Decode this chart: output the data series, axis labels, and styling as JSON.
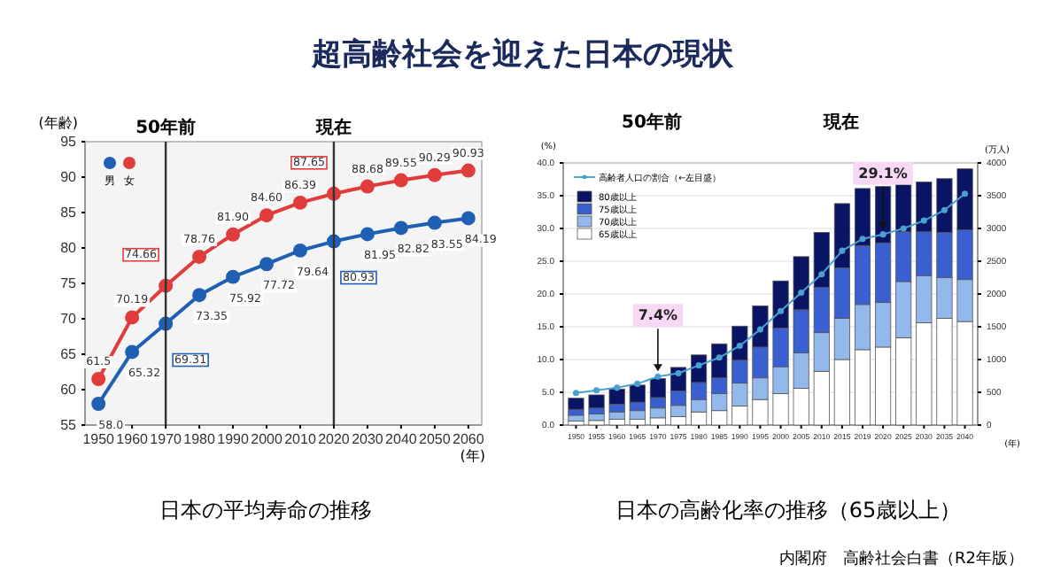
{
  "chart_data": [
    {
      "type": "line",
      "title": "超高齢社会を迎えた日本の現状",
      "subtitle": "日本の平均寿命の推移",
      "xlabel": "(年)",
      "ylabel": "(年齢)",
      "categories": [
        "1950",
        "1960",
        "1970",
        "1980",
        "1990",
        "2000",
        "2010",
        "2020",
        "2030",
        "2040",
        "2050",
        "2060"
      ],
      "series": [
        {
          "name": "男",
          "color": "#1f5fb4",
          "values": [
            58.0,
            65.32,
            69.31,
            73.35,
            75.92,
            77.72,
            79.64,
            80.93,
            81.95,
            82.82,
            83.55,
            84.19
          ],
          "value_labels": [
            "58.0",
            "65.32",
            "69.31",
            "73.35",
            "75.92",
            "77.72",
            "79.64",
            "80.93",
            "81.95",
            "82.82",
            "83.55",
            "84.19"
          ]
        },
        {
          "name": "女",
          "color": "#e03c3c",
          "values": [
            61.5,
            70.19,
            74.66,
            78.76,
            81.9,
            84.6,
            86.39,
            87.65,
            88.68,
            89.55,
            90.29,
            90.93
          ],
          "value_labels": [
            "61.5",
            "70.19",
            "74.66",
            "78.76",
            "81.90",
            "84.60",
            "86.39",
            "87.65",
            "88.68",
            "89.55",
            "90.29",
            "90.93"
          ]
        }
      ],
      "ylim": [
        55,
        95
      ],
      "yticks": [
        55,
        60,
        65,
        70,
        75,
        80,
        85,
        90,
        95
      ],
      "legend": "top left",
      "marker": "circle",
      "data_labels": true,
      "ref_lines": [
        {
          "axis": "x",
          "value": "1970",
          "label": "50年前",
          "color": "#333333"
        },
        {
          "axis": "x",
          "value": "2020",
          "label": "現在",
          "color": "#333333"
        }
      ]
    },
    {
      "type": "bar",
      "subtitle": "日本の高齢化率の推移（65歳以上）",
      "xlabel": "(年)",
      "ylabel": "(%)",
      "y2label": "(万人)",
      "stacked": true,
      "categories": [
        "1950",
        "1955",
        "1960",
        "1965",
        "1970",
        "1975",
        "1980",
        "1985",
        "1990",
        "1995",
        "2000",
        "2005",
        "2010",
        "2015",
        "2019",
        "2020",
        "2025",
        "2030",
        "2035",
        "2040"
      ],
      "series": [
        {
          "name": "65歳以上",
          "color": "#ffffff",
          "axis": "y2",
          "values": [
            60,
            70,
            90,
            90,
            110,
            130,
            200,
            220,
            290,
            390,
            480,
            560,
            820,
            1000,
            1150,
            1190,
            1330,
            1560,
            1630,
            1580
          ]
        },
        {
          "name": "70歳以上",
          "color": "#93b8ec",
          "axis": "y2",
          "values": [
            90,
            100,
            110,
            130,
            150,
            170,
            190,
            260,
            350,
            330,
            410,
            540,
            590,
            630,
            690,
            680,
            860,
            720,
            620,
            640
          ]
        },
        {
          "name": "75歳以上",
          "color": "#3a5fd0",
          "axis": "y2",
          "values": [
            90,
            90,
            120,
            130,
            160,
            220,
            260,
            240,
            350,
            470,
            590,
            660,
            690,
            770,
            900,
            910,
            760,
            670,
            690,
            760
          ]
        },
        {
          "name": "80歳以上",
          "color": "#0a1464",
          "axis": "y2",
          "values": [
            170,
            200,
            230,
            260,
            290,
            360,
            420,
            520,
            520,
            630,
            720,
            810,
            840,
            980,
            870,
            860,
            720,
            760,
            820,
            930
          ]
        },
        {
          "name": "高齢者人口の割合（←左目盛）",
          "type": "line",
          "color": "#4aa0d0",
          "axis": "y",
          "values": [
            4.9,
            5.3,
            5.7,
            6.3,
            7.4,
            7.9,
            9.1,
            10.3,
            12.1,
            14.6,
            17.4,
            20.2,
            23.0,
            26.6,
            28.4,
            29.1,
            30.0,
            31.2,
            32.8,
            35.3
          ]
        }
      ],
      "ylim": [
        0,
        40
      ],
      "yticks": [
        {
          "value": 0,
          "label": "0.0"
        },
        {
          "value": 5,
          "label": "5.0"
        },
        {
          "value": 10,
          "label": "10.0"
        },
        {
          "value": 15,
          "label": "15.0"
        },
        {
          "value": 20,
          "label": "20.0"
        },
        {
          "value": 25,
          "label": "25.0"
        },
        {
          "value": 30,
          "label": "30.0"
        },
        {
          "value": 35,
          "label": "35.0"
        },
        {
          "value": 40,
          "label": "40.0"
        }
      ],
      "y2lim": [
        0,
        4000
      ],
      "y2ticks": [
        0,
        500,
        1000,
        1500,
        2000,
        2500,
        3000,
        3500,
        4000
      ],
      "grid": "y",
      "legend": "top left",
      "marker": "circle",
      "annotations": [
        {
          "text": "7.4%",
          "x": "1970",
          "y": 7.4
        },
        {
          "text": "29.1%",
          "x": "2020",
          "y": 29.1
        },
        "50年前",
        "現在",
        "内閣府　高齢社会白書（R2年版）"
      ]
    }
  ]
}
